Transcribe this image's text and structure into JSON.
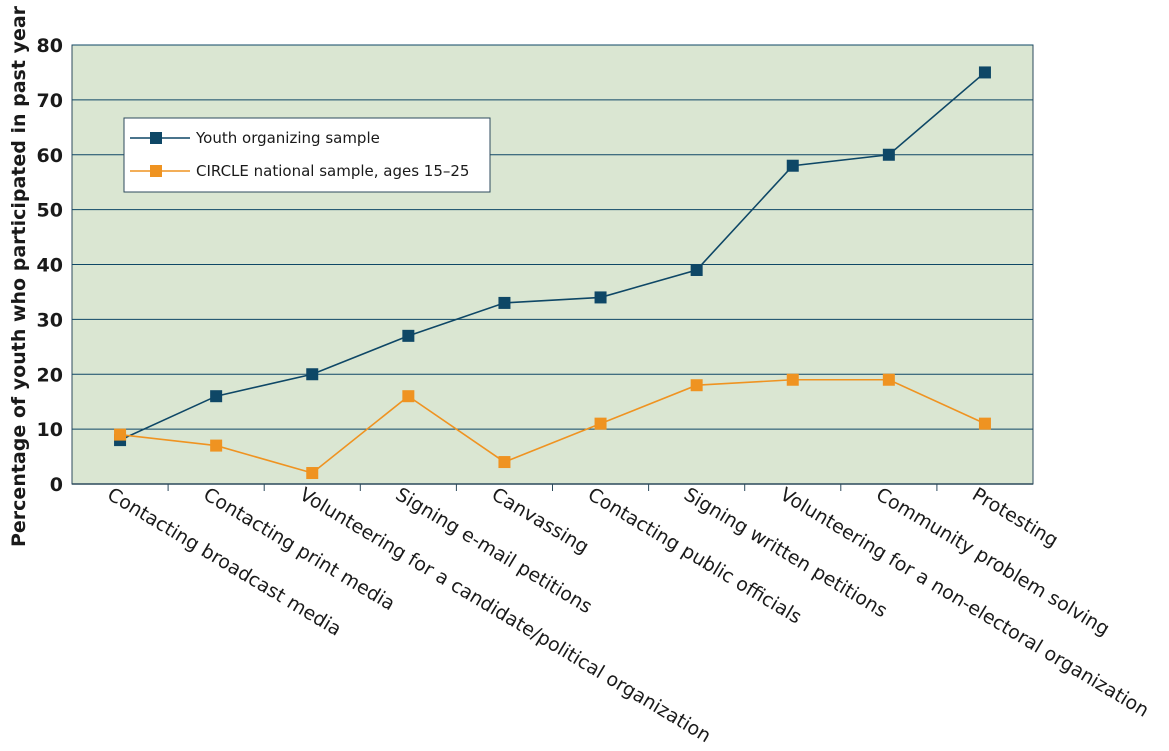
{
  "chart_data": {
    "type": "line",
    "title": "",
    "xlabel": "",
    "ylabel": "Percentage of youth who participated in past year",
    "ylim": [
      0,
      80
    ],
    "yticks": [
      0,
      10,
      20,
      30,
      40,
      50,
      60,
      70,
      80
    ],
    "grid": true,
    "legend_position": "top-left",
    "categories": [
      "Contacting broadcast media",
      "Contacting print media",
      "Volunteering for a candidate/political organization",
      "Signing e-mail petitions",
      "Canvassing",
      "Contacting public officials",
      "Signing written petitions",
      "Volunteering for a non-electoral organization",
      "Community problem solving",
      "Protesting"
    ],
    "series": [
      {
        "name": "Youth organizing sample",
        "color": "#0e4766",
        "values": [
          8,
          16,
          20,
          27,
          33,
          34,
          39,
          58,
          60,
          75
        ]
      },
      {
        "name": "CIRCLE national sample, ages 15–25",
        "color": "#ef9321",
        "values": [
          9,
          7,
          2,
          16,
          4,
          11,
          18,
          19,
          19,
          11
        ]
      }
    ],
    "colors": {
      "plot_background": "#dae6d2",
      "gridline": "#0e4766",
      "frame": "#2c4a5c",
      "legend_background": "#ffffff"
    }
  }
}
